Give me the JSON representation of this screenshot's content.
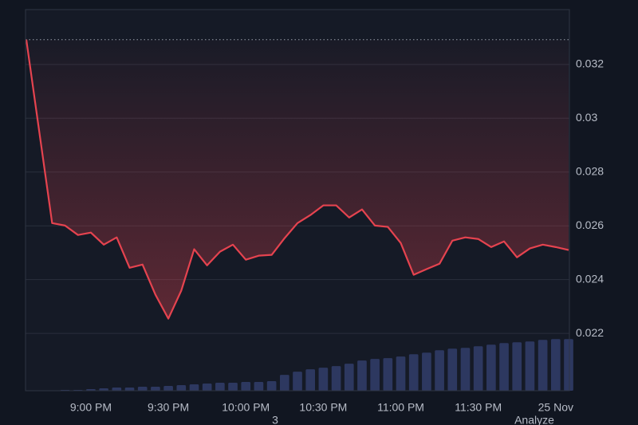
{
  "chart_data": {
    "type": "line",
    "categories": [
      null,
      null,
      null,
      null,
      null,
      "9:00 PM",
      null,
      null,
      null,
      null,
      null,
      "9:30 PM",
      null,
      null,
      null,
      null,
      null,
      "10:00 PM",
      null,
      null,
      null,
      null,
      null,
      "10:30 PM",
      null,
      null,
      null,
      null,
      null,
      "11:00 PM",
      null,
      null,
      null,
      null,
      null,
      "11:30 PM",
      null,
      null,
      null,
      null,
      null,
      "25 Nov",
      null
    ],
    "series": [
      {
        "type": "area-line",
        "color": "#e5434f",
        "values": [
          0.03292,
          0.02951,
          0.0261,
          0.02601,
          0.02566,
          0.02575,
          0.0253,
          0.02557,
          0.02444,
          0.02456,
          0.02344,
          0.02255,
          0.02359,
          0.02513,
          0.02453,
          0.02504,
          0.0253,
          0.02474,
          0.02489,
          0.02492,
          0.02554,
          0.0261,
          0.0264,
          0.02676,
          0.02676,
          0.02631,
          0.02661,
          0.02601,
          0.02596,
          0.02536,
          0.02418,
          0.02439,
          0.02459,
          0.02545,
          0.02557,
          0.02551,
          0.02521,
          0.02542,
          0.02483,
          0.02516,
          0.0253,
          0.02521,
          0.0251
        ]
      },
      {
        "type": "bar",
        "axis": "y2",
        "color": "#2d3860",
        "values": [
          0,
          0,
          0,
          1,
          1,
          2,
          3,
          4,
          4,
          5,
          5,
          6,
          7,
          8,
          9,
          10,
          10,
          11,
          11,
          12,
          20,
          24,
          27,
          29,
          31,
          34,
          38,
          40,
          41,
          43,
          46,
          48,
          51,
          53,
          54,
          56,
          58,
          60,
          61,
          62,
          64,
          65,
          65
        ]
      }
    ],
    "ylim": [
      0.01987,
      0.03404
    ],
    "yticks": [
      0.022,
      0.024,
      0.026,
      0.028,
      0.03,
      0.032
    ],
    "y2lim": [
      0,
      480
    ],
    "grid": true
  },
  "overlay": {
    "badge": "3",
    "button": "Analyze"
  }
}
